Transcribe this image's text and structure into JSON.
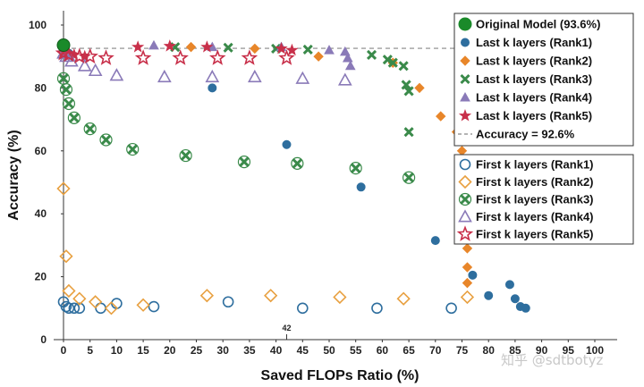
{
  "chart_data": {
    "type": "scatter",
    "xlabel": "Saved FLOPs Ratio (%)",
    "ylabel": "Accuracy (%)",
    "xlim": [
      -2,
      100
    ],
    "ylim": [
      0,
      100
    ],
    "xticks": [
      0,
      5,
      10,
      15,
      20,
      25,
      30,
      35,
      40,
      45,
      50,
      55,
      60,
      65,
      70,
      75,
      80,
      85,
      90,
      95,
      100
    ],
    "yticks": [
      0,
      20,
      40,
      60,
      80,
      100
    ],
    "reference_line": {
      "label": "Accuracy = 92.6%",
      "y": 92.6,
      "color": "#888888"
    },
    "annotation": {
      "text": "42",
      "x": 42,
      "y": 0
    },
    "original_model": {
      "label": "Original Model (93.6%)",
      "x": 0,
      "y": 93.6,
      "color": "#1a8a2a"
    },
    "series": [
      {
        "name": "Last k layers (Rank1)",
        "marker": "circle",
        "filled": true,
        "color": "#2e6e9e",
        "points": [
          [
            0,
            92.5
          ],
          [
            1,
            91
          ],
          [
            28,
            80
          ],
          [
            42,
            62
          ],
          [
            56,
            48.5
          ],
          [
            70,
            31.5
          ],
          [
            77,
            20.5
          ],
          [
            80,
            14
          ],
          [
            84,
            17.5
          ],
          [
            85,
            13
          ],
          [
            86,
            10.5
          ],
          [
            87,
            10
          ]
        ]
      },
      {
        "name": "Last k layers (Rank2)",
        "marker": "diamond",
        "filled": true,
        "color": "#e8862a",
        "points": [
          [
            0,
            91.5
          ],
          [
            24,
            93
          ],
          [
            36,
            92.5
          ],
          [
            48,
            90
          ],
          [
            62,
            88
          ],
          [
            67,
            80
          ],
          [
            71,
            71
          ],
          [
            74,
            66
          ],
          [
            75,
            60
          ],
          [
            76,
            29
          ],
          [
            76,
            23
          ],
          [
            76,
            18
          ]
        ]
      },
      {
        "name": "Last k layers (Rank3)",
        "marker": "x",
        "filled": true,
        "color": "#3a8a4a",
        "points": [
          [
            0,
            92.5
          ],
          [
            21,
            93
          ],
          [
            31,
            92.8
          ],
          [
            40,
            92.5
          ],
          [
            46,
            92.2
          ],
          [
            58,
            90.5
          ],
          [
            61,
            89
          ],
          [
            62,
            88
          ],
          [
            64,
            87
          ],
          [
            64.5,
            81
          ],
          [
            65,
            79
          ],
          [
            65,
            66
          ]
        ]
      },
      {
        "name": "Last k layers (Rank4)",
        "marker": "triangle",
        "filled": true,
        "color": "#8a7ab8",
        "points": [
          [
            0,
            93
          ],
          [
            17,
            93.5
          ],
          [
            28,
            93
          ],
          [
            41,
            93
          ],
          [
            50,
            92
          ],
          [
            53,
            91.5
          ],
          [
            53.5,
            89.5
          ],
          [
            54,
            87
          ]
        ]
      },
      {
        "name": "Last k layers (Rank5)",
        "marker": "star",
        "filled": true,
        "color": "#c8304a",
        "points": [
          [
            0,
            91
          ],
          [
            1,
            91
          ],
          [
            2,
            90.5
          ],
          [
            4,
            90
          ],
          [
            14,
            93
          ],
          [
            20,
            93.3
          ],
          [
            27,
            93
          ],
          [
            41,
            92.5
          ],
          [
            43,
            92
          ]
        ]
      },
      {
        "name": "First k layers (Rank1)",
        "marker": "circle",
        "filled": false,
        "color": "#2e6e9e",
        "points": [
          [
            0,
            12
          ],
          [
            0.5,
            10.5
          ],
          [
            1,
            10
          ],
          [
            2,
            10
          ],
          [
            3,
            10
          ],
          [
            7,
            10
          ],
          [
            10,
            11.5
          ],
          [
            17,
            10.5
          ],
          [
            31,
            12
          ],
          [
            45,
            10
          ],
          [
            59,
            10
          ],
          [
            73,
            10
          ]
        ]
      },
      {
        "name": "First k layers (Rank2)",
        "marker": "diamond",
        "filled": false,
        "color": "#e8a040",
        "points": [
          [
            0,
            48
          ],
          [
            0.5,
            26.5
          ],
          [
            1,
            15.5
          ],
          [
            3,
            13
          ],
          [
            6,
            12
          ],
          [
            9,
            10
          ],
          [
            15,
            11
          ],
          [
            27,
            14
          ],
          [
            39,
            14
          ],
          [
            52,
            13.5
          ],
          [
            64,
            13
          ],
          [
            76,
            13.5
          ]
        ]
      },
      {
        "name": "First k layers (Rank3)",
        "marker": "xcircle",
        "filled": false,
        "color": "#3a8a4a",
        "points": [
          [
            0,
            83
          ],
          [
            0.5,
            79.5
          ],
          [
            1,
            75
          ],
          [
            2,
            70.5
          ],
          [
            5,
            67
          ],
          [
            8,
            63.5
          ],
          [
            13,
            60.5
          ],
          [
            23,
            58.5
          ],
          [
            34,
            56.5
          ],
          [
            44,
            56
          ],
          [
            55,
            54.5
          ],
          [
            65,
            51.5
          ]
        ]
      },
      {
        "name": "First k layers (Rank4)",
        "marker": "triangle",
        "filled": false,
        "color": "#8a7ab8",
        "points": [
          [
            0,
            91
          ],
          [
            0.5,
            90
          ],
          [
            1.5,
            88.5
          ],
          [
            4,
            87
          ],
          [
            6,
            85.5
          ],
          [
            10,
            84
          ],
          [
            19,
            83.5
          ],
          [
            28,
            83.5
          ],
          [
            36,
            83.5
          ],
          [
            45,
            83
          ],
          [
            53,
            82.5
          ]
        ]
      },
      {
        "name": "First k layers (Rank5)",
        "marker": "star",
        "filled": false,
        "color": "#c8304a",
        "points": [
          [
            0,
            91
          ],
          [
            1,
            90.5
          ],
          [
            3,
            90
          ],
          [
            5,
            90
          ],
          [
            8,
            89.5
          ],
          [
            15,
            89.5
          ],
          [
            22,
            89.5
          ],
          [
            29,
            89.5
          ],
          [
            35,
            89.5
          ],
          [
            42,
            89.5
          ]
        ]
      }
    ]
  },
  "watermark": "知乎 @sdtbotyz"
}
